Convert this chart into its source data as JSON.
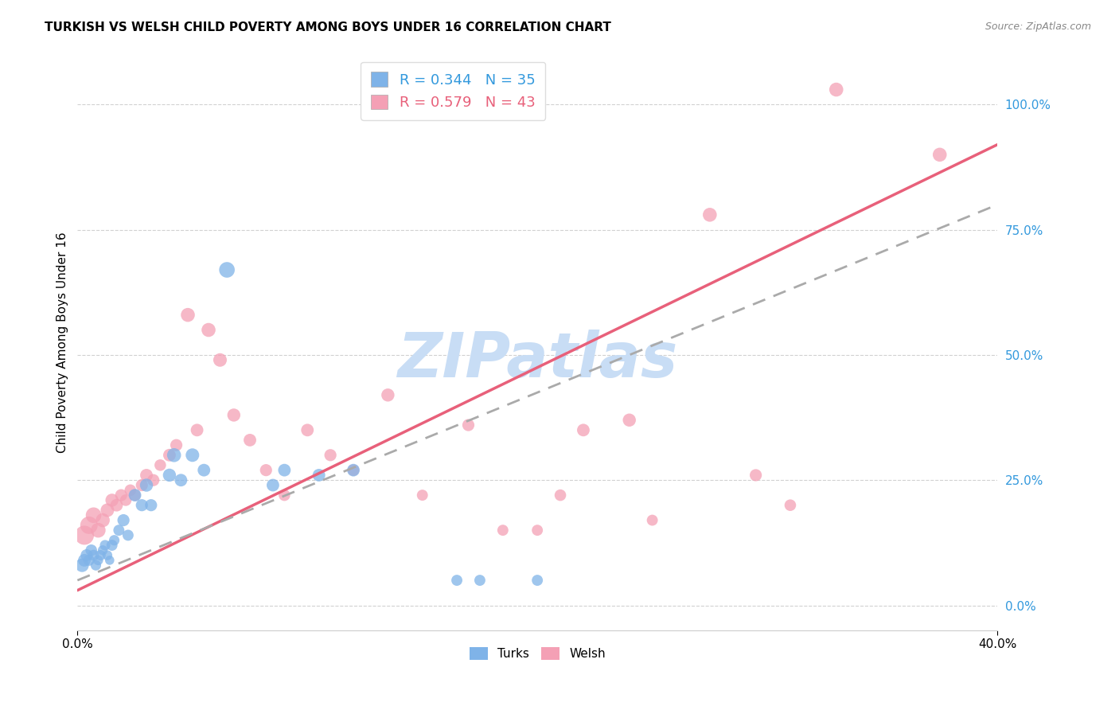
{
  "title": "TURKISH VS WELSH CHILD POVERTY AMONG BOYS UNDER 16 CORRELATION CHART",
  "source": "Source: ZipAtlas.com",
  "ylabel": "Child Poverty Among Boys Under 16",
  "xlim": [
    0.0,
    0.4
  ],
  "ylim": [
    -0.05,
    1.1
  ],
  "right_yticks": [
    0.0,
    0.25,
    0.5,
    0.75,
    1.0
  ],
  "right_yticklabels": [
    "0.0%",
    "25.0%",
    "50.0%",
    "75.0%",
    "100.0%"
  ],
  "xticks": [
    0.0,
    0.4
  ],
  "xticklabels": [
    "0.0%",
    "40.0%"
  ],
  "turks_color": "#7fb3e8",
  "welsh_color": "#f4a0b5",
  "turks_line_color": "#6699cc",
  "welsh_line_color": "#e8607a",
  "watermark": "ZIPatlas",
  "watermark_color": "#c8ddf5",
  "legend_R_turks": "R = 0.344",
  "legend_N_turks": "N = 35",
  "legend_R_welsh": "R = 0.579",
  "legend_N_welsh": "N = 43",
  "turks_x": [
    0.002,
    0.003,
    0.004,
    0.005,
    0.006,
    0.007,
    0.008,
    0.009,
    0.01,
    0.011,
    0.012,
    0.013,
    0.014,
    0.015,
    0.016,
    0.018,
    0.02,
    0.022,
    0.025,
    0.028,
    0.03,
    0.032,
    0.04,
    0.042,
    0.045,
    0.05,
    0.055,
    0.065,
    0.085,
    0.09,
    0.105,
    0.12,
    0.165,
    0.175,
    0.2
  ],
  "turks_y": [
    0.08,
    0.09,
    0.1,
    0.09,
    0.11,
    0.1,
    0.08,
    0.09,
    0.1,
    0.11,
    0.12,
    0.1,
    0.09,
    0.12,
    0.13,
    0.15,
    0.17,
    0.14,
    0.22,
    0.2,
    0.24,
    0.2,
    0.26,
    0.3,
    0.25,
    0.3,
    0.27,
    0.67,
    0.24,
    0.27,
    0.26,
    0.27,
    0.05,
    0.05,
    0.05
  ],
  "turks_sizes": [
    150,
    130,
    120,
    100,
    110,
    100,
    90,
    80,
    90,
    80,
    90,
    80,
    70,
    100,
    90,
    100,
    120,
    100,
    130,
    120,
    140,
    120,
    140,
    160,
    130,
    150,
    130,
    200,
    130,
    130,
    130,
    130,
    100,
    100,
    100
  ],
  "welsh_x": [
    0.003,
    0.005,
    0.007,
    0.009,
    0.011,
    0.013,
    0.015,
    0.017,
    0.019,
    0.021,
    0.023,
    0.025,
    0.028,
    0.03,
    0.033,
    0.036,
    0.04,
    0.043,
    0.048,
    0.052,
    0.057,
    0.062,
    0.068,
    0.075,
    0.082,
    0.09,
    0.1,
    0.11,
    0.12,
    0.135,
    0.15,
    0.17,
    0.185,
    0.2,
    0.21,
    0.22,
    0.24,
    0.25,
    0.275,
    0.295,
    0.31,
    0.33,
    0.375
  ],
  "welsh_y": [
    0.14,
    0.16,
    0.18,
    0.15,
    0.17,
    0.19,
    0.21,
    0.2,
    0.22,
    0.21,
    0.23,
    0.22,
    0.24,
    0.26,
    0.25,
    0.28,
    0.3,
    0.32,
    0.58,
    0.35,
    0.55,
    0.49,
    0.38,
    0.33,
    0.27,
    0.22,
    0.35,
    0.3,
    0.27,
    0.42,
    0.22,
    0.36,
    0.15,
    0.15,
    0.22,
    0.35,
    0.37,
    0.17,
    0.78,
    0.26,
    0.2,
    1.03,
    0.9
  ],
  "welsh_sizes": [
    300,
    250,
    200,
    180,
    160,
    150,
    140,
    130,
    120,
    110,
    110,
    110,
    120,
    130,
    120,
    110,
    130,
    120,
    160,
    130,
    160,
    150,
    140,
    130,
    120,
    110,
    130,
    120,
    110,
    140,
    100,
    120,
    100,
    100,
    110,
    130,
    140,
    100,
    160,
    120,
    110,
    160,
    160
  ],
  "turks_line_x": [
    0.0,
    0.4
  ],
  "turks_line_y": [
    0.05,
    0.8
  ],
  "welsh_line_x": [
    0.0,
    0.4
  ],
  "welsh_line_y": [
    0.03,
    0.92
  ]
}
